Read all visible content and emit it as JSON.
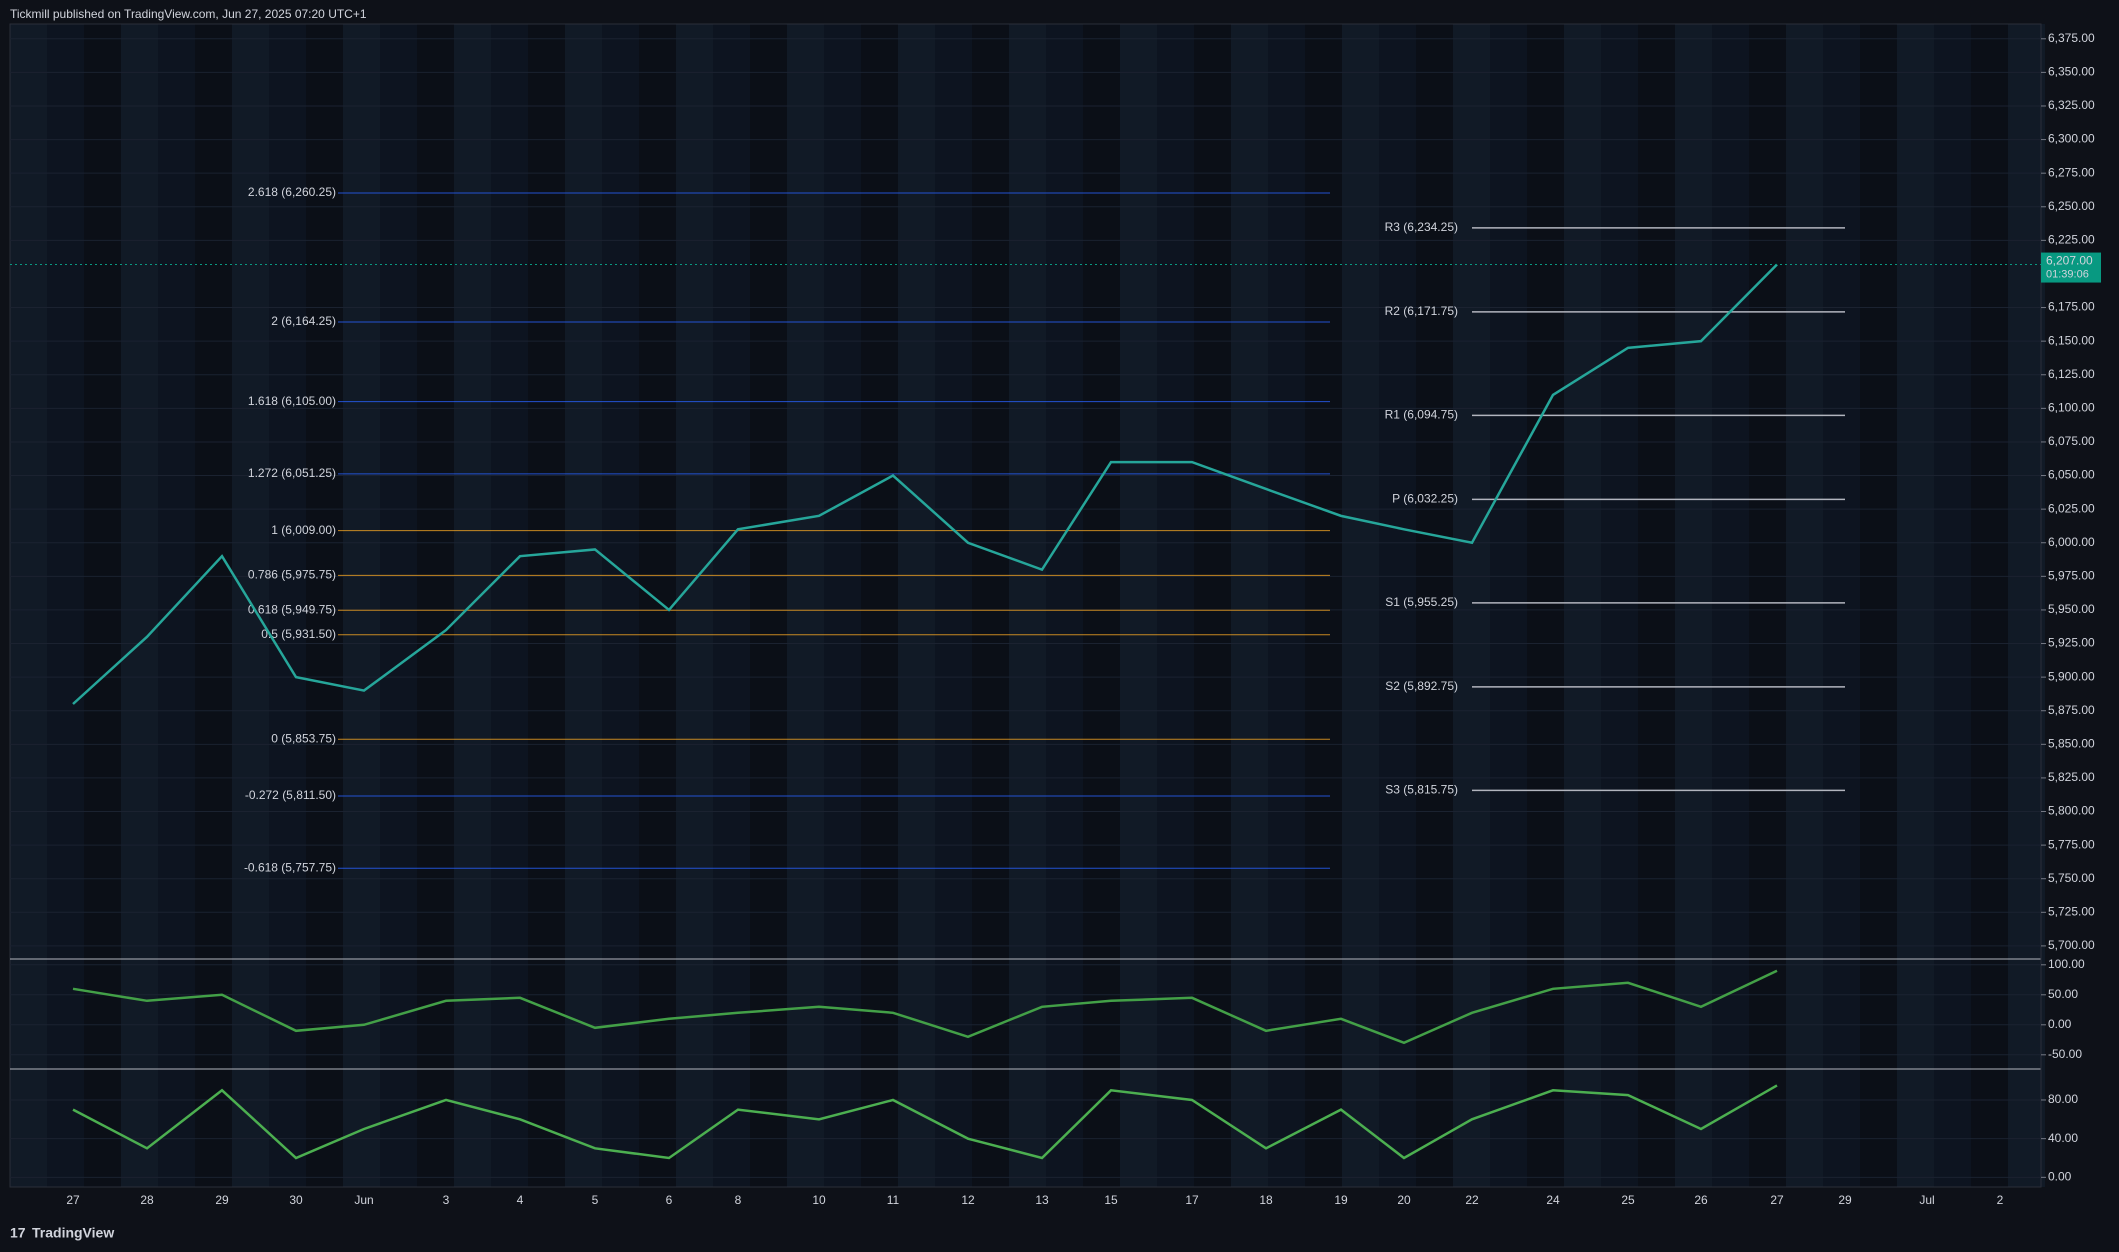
{
  "header": {
    "title": "Tickmill published on TradingView.com, Jun 27, 2025 07:20 UTC+1"
  },
  "footer": {
    "brand": "TradingView"
  },
  "chart_data": [
    {
      "type": "line",
      "categories": [
        "27",
        "28",
        "29",
        "30",
        "Jun",
        "3",
        "4",
        "5",
        "6",
        "8",
        "10",
        "11",
        "12",
        "13",
        "15",
        "17",
        "18",
        "19",
        "20",
        "22",
        "24",
        "25",
        "26",
        "27",
        "29",
        "Jul",
        "2"
      ],
      "series": [
        {
          "color": "#26a69a",
          "values": [
            5880,
            5930,
            5990,
            5900,
            5890,
            5935,
            5990,
            5995,
            5950,
            6010,
            6020,
            6050,
            6000,
            5980,
            6060,
            6060,
            6040,
            6020,
            6010,
            6000,
            6110,
            6145,
            6150,
            6207,
            null,
            null,
            null
          ]
        }
      ],
      "ylim": [
        5691,
        6386
      ],
      "yticks": [
        {
          "value": 5700,
          "label": "5,700.00"
        },
        {
          "value": 5725,
          "label": "5,725.00"
        },
        {
          "value": 5750,
          "label": "5,750.00"
        },
        {
          "value": 5775,
          "label": "5,775.00"
        },
        {
          "value": 5800,
          "label": "5,800.00"
        },
        {
          "value": 5825,
          "label": "5,825.00"
        },
        {
          "value": 5850,
          "label": "5,850.00"
        },
        {
          "value": 5875,
          "label": "5,875.00"
        },
        {
          "value": 5900,
          "label": "5,900.00"
        },
        {
          "value": 5925,
          "label": "5,925.00"
        },
        {
          "value": 5950,
          "label": "5,950.00"
        },
        {
          "value": 5975,
          "label": "5,975.00"
        },
        {
          "value": 6000,
          "label": "6,000.00"
        },
        {
          "value": 6025,
          "label": "6,025.00"
        },
        {
          "value": 6050,
          "label": "6,050.00"
        },
        {
          "value": 6075,
          "label": "6,075.00"
        },
        {
          "value": 6100,
          "label": "6,100.00"
        },
        {
          "value": 6125,
          "label": "6,125.00"
        },
        {
          "value": 6150,
          "label": "6,150.00"
        },
        {
          "value": 6175,
          "label": "6,175.00"
        },
        {
          "value": 6225,
          "label": "6,225.00"
        },
        {
          "value": 6250,
          "label": "6,250.00"
        },
        {
          "value": 6275,
          "label": "6,275.00"
        },
        {
          "value": 6300,
          "label": "6,300.00"
        },
        {
          "value": 6325,
          "label": "6,325.00"
        },
        {
          "value": 6350,
          "label": "6,350.00"
        },
        {
          "value": 6375,
          "label": "6,375.00"
        }
      ],
      "fib_levels": [
        {
          "label": "2.618 (6,260.25)",
          "value": 6260.25
        },
        {
          "label": "2 (6,164.25)",
          "value": 6164.25
        },
        {
          "label": "1.618 (6,105.00)",
          "value": 6105
        },
        {
          "label": "1.272 (6,051.25)",
          "value": 6051.25
        },
        {
          "label": "1 (6,009.00)",
          "value": 6009
        },
        {
          "label": "0.786 (5,975.75)",
          "value": 5975.75
        },
        {
          "label": "0.618 (5,949.75)",
          "value": 5949.75
        },
        {
          "label": "0.5 (5,931.50)",
          "value": 5931.5
        },
        {
          "label": "0 (5,853.75)",
          "value": 5853.75
        },
        {
          "label": "-0.272 (5,811.50)",
          "value": 5811.5
        },
        {
          "label": "-0.618 (5,757.75)",
          "value": 5757.75
        }
      ],
      "pivot_levels": [
        {
          "label": "R3 (6,234.25)",
          "value": 6234.25
        },
        {
          "label": "R2 (6,171.75)",
          "value": 6171.75
        },
        {
          "label": "R1 (6,094.75)",
          "value": 6094.75
        },
        {
          "label": "P (6,032.25)",
          "value": 6032.25
        },
        {
          "label": "S1 (5,955.25)",
          "value": 5955.25
        },
        {
          "label": "S2 (5,892.75)",
          "value": 5892.75
        },
        {
          "label": "S3 (5,815.75)",
          "value": 5815.75
        }
      ],
      "last_price": {
        "value": 6207,
        "label": "6,207.00"
      },
      "countdown": "01:39:06"
    },
    {
      "type": "line",
      "series": [
        {
          "color": "#43a047",
          "values": [
            60,
            40,
            50,
            -10,
            0,
            40,
            45,
            -5,
            10,
            20,
            30,
            20,
            -20,
            30,
            40,
            45,
            -10,
            10,
            -30,
            20,
            60,
            70,
            30,
            90,
            null,
            null,
            null
          ]
        }
      ],
      "ylim": [
        -72,
        108
      ],
      "yticks": [
        {
          "value": -50,
          "label": "-50.00"
        },
        {
          "value": 0,
          "label": "0.00"
        },
        {
          "value": 50,
          "label": "50.00"
        },
        {
          "value": 100,
          "label": "100.00"
        }
      ]
    },
    {
      "type": "line",
      "series": [
        {
          "color": "#4caf50",
          "values": [
            70,
            30,
            90,
            20,
            50,
            80,
            60,
            30,
            20,
            70,
            60,
            80,
            40,
            20,
            90,
            80,
            30,
            70,
            20,
            60,
            90,
            85,
            50,
            95,
            null,
            null,
            null
          ]
        }
      ],
      "ylim": [
        -10,
        111
      ],
      "yticks": [
        {
          "value": 0,
          "label": "0.00"
        },
        {
          "value": 40,
          "label": "40.00"
        },
        {
          "value": 80,
          "label": "80.00"
        }
      ]
    }
  ]
}
